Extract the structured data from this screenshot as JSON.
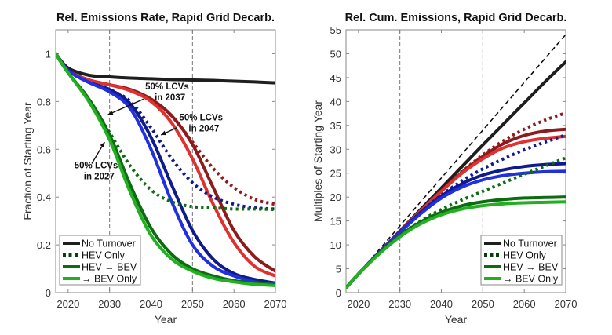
{
  "colors": {
    "black": "#1e1e1e",
    "maroon": "#8c1c1c",
    "red": "#e03030",
    "navy": "#0f1a8c",
    "blue": "#2030e0",
    "darkgreen": "#0d6b10",
    "green": "#22b022",
    "annotation_green_dotted": "#0b3d10"
  },
  "chart_data": [
    {
      "type": "line",
      "title": "Rel. Emissions Rate, Rapid Grid Decarb.",
      "xlabel": "Year",
      "ylabel": "Fraction of Starting Year",
      "xlim": [
        2017,
        2070
      ],
      "ylim": [
        0,
        1.1
      ],
      "xticks": [
        2020,
        2030,
        2040,
        2050,
        2060,
        2070
      ],
      "yticks": [
        0,
        0.2,
        0.4,
        0.6,
        0.8,
        1
      ],
      "ytick_labels": [
        "0",
        "0.2",
        "0.4",
        "0.6",
        "0.8",
        "1"
      ],
      "vlines": [
        2030,
        2050
      ],
      "grid": false,
      "legend_position": "bottom-left",
      "x": [
        2017,
        2020,
        2025,
        2030,
        2035,
        2040,
        2045,
        2050,
        2055,
        2060,
        2065,
        2070
      ],
      "series": [
        {
          "name": "No Turnover",
          "color": "black",
          "style": "solid",
          "values": [
            1.0,
            0.94,
            0.91,
            0.903,
            0.898,
            0.895,
            0.892,
            0.89,
            0.888,
            0.885,
            0.882,
            0.878
          ]
        },
        {
          "name": "HEV Only (2047)",
          "color": "maroon",
          "style": "dotted",
          "values": [
            1.0,
            0.93,
            0.89,
            0.87,
            0.85,
            0.81,
            0.74,
            0.63,
            0.52,
            0.44,
            0.39,
            0.37
          ]
        },
        {
          "name": "HEV → BEV (2047)",
          "color": "maroon",
          "style": "solid",
          "values": [
            1.0,
            0.93,
            0.89,
            0.87,
            0.85,
            0.81,
            0.74,
            0.62,
            0.44,
            0.26,
            0.15,
            0.09
          ]
        },
        {
          "name": "→ BEV Only (2047)",
          "color": "red",
          "style": "solid",
          "values": [
            1.0,
            0.93,
            0.89,
            0.87,
            0.845,
            0.8,
            0.71,
            0.56,
            0.37,
            0.21,
            0.11,
            0.07
          ]
        },
        {
          "name": "HEV Only (2037)",
          "color": "navy",
          "style": "dotted",
          "values": [
            1.0,
            0.93,
            0.88,
            0.85,
            0.8,
            0.69,
            0.56,
            0.46,
            0.4,
            0.37,
            0.355,
            0.35
          ]
        },
        {
          "name": "HEV → BEV (2037)",
          "color": "navy",
          "style": "solid",
          "values": [
            1.0,
            0.93,
            0.88,
            0.85,
            0.79,
            0.65,
            0.45,
            0.26,
            0.14,
            0.08,
            0.055,
            0.04
          ]
        },
        {
          "name": "→ BEV Only (2037)",
          "color": "blue",
          "style": "solid",
          "values": [
            1.0,
            0.93,
            0.88,
            0.84,
            0.77,
            0.6,
            0.38,
            0.2,
            0.11,
            0.07,
            0.045,
            0.035
          ]
        },
        {
          "name": "HEV Only (2027)",
          "color": "darkgreen",
          "style": "dotted",
          "values": [
            1.0,
            0.92,
            0.81,
            0.67,
            0.53,
            0.43,
            0.38,
            0.36,
            0.355,
            0.35,
            0.35,
            0.348
          ]
        },
        {
          "name": "HEV → BEV (2027)",
          "color": "darkgreen",
          "style": "solid",
          "values": [
            1.0,
            0.92,
            0.81,
            0.66,
            0.45,
            0.27,
            0.16,
            0.1,
            0.07,
            0.05,
            0.04,
            0.033
          ]
        },
        {
          "name": "→ BEV Only (2027)",
          "color": "green",
          "style": "solid",
          "values": [
            1.0,
            0.92,
            0.8,
            0.64,
            0.42,
            0.24,
            0.14,
            0.09,
            0.06,
            0.045,
            0.035,
            0.03
          ]
        }
      ],
      "annotations": [
        {
          "lines": [
            "50% LCVs",
            "in 2037"
          ],
          "text_at": [
            2038.6,
            0.85
          ],
          "arrow_from": [
            2038.2,
            0.81
          ],
          "arrow_to": [
            2029.6,
            0.745
          ]
        },
        {
          "lines": [
            "50% LCVs",
            "in 2047"
          ],
          "text_at": [
            2046.8,
            0.72
          ],
          "arrow_from": [
            2046.2,
            0.69
          ],
          "arrow_to": [
            2042.4,
            0.66
          ]
        },
        {
          "lines": [
            "50% LCVs",
            "in 2027"
          ],
          "text_at": [
            2021.5,
            0.52
          ],
          "arrow_from": [
            2025.7,
            0.54
          ],
          "arrow_to": [
            2028.8,
            0.63
          ]
        }
      ],
      "legend": [
        {
          "label": "No Turnover",
          "color": "black",
          "style": "solid"
        },
        {
          "label": "HEV Only",
          "color": "annotation_green_dotted",
          "style": "dotted"
        },
        {
          "label": "HEV →  BEV",
          "color": "darkgreen",
          "style": "solid"
        },
        {
          "label": "→ BEV Only",
          "color": "green",
          "style": "solid"
        }
      ]
    },
    {
      "type": "line",
      "title": "Rel. Cum. Emissions, Rapid Grid Decarb.",
      "xlabel": "Year",
      "ylabel": "Multiples of Starting Year",
      "xlim": [
        2017,
        2070
      ],
      "ylim": [
        0,
        55
      ],
      "xticks": [
        2020,
        2030,
        2040,
        2050,
        2060,
        2070
      ],
      "yticks": [
        0,
        5,
        10,
        15,
        20,
        25,
        30,
        35,
        40,
        45,
        50,
        55
      ],
      "ytick_labels": [
        "0",
        "5",
        "10",
        "15",
        "20",
        "25",
        "30",
        "35",
        "40",
        "45",
        "50",
        "55"
      ],
      "vlines": [
        2030,
        2050
      ],
      "grid": false,
      "legend_position": "bottom-right",
      "x": [
        2017,
        2020,
        2025,
        2030,
        2035,
        2040,
        2045,
        2050,
        2055,
        2060,
        2065,
        2070
      ],
      "series": [
        {
          "name": "Reference (constant rate)",
          "color": "black",
          "style": "dashed",
          "values": [
            1,
            4,
            9,
            14,
            19,
            24,
            29,
            34,
            39,
            44,
            49,
            54
          ]
        },
        {
          "name": "No Turnover",
          "color": "black",
          "style": "solid",
          "values": [
            1,
            3.9,
            8.4,
            12.9,
            17.4,
            21.9,
            26.4,
            30.9,
            35.3,
            39.7,
            44.1,
            48.3
          ]
        },
        {
          "name": "HEV Only (2047)",
          "color": "maroon",
          "style": "dotted",
          "values": [
            1,
            3.9,
            8.4,
            12.8,
            17.1,
            21.3,
            25.3,
            28.8,
            31.8,
            34.2,
            36.1,
            37.6
          ]
        },
        {
          "name": "HEV → BEV (2047)",
          "color": "maroon",
          "style": "solid",
          "values": [
            1,
            3.9,
            8.4,
            12.8,
            17.1,
            21.3,
            25.2,
            28.5,
            31.2,
            32.9,
            33.8,
            34.2
          ]
        },
        {
          "name": "→ BEV Only (2047)",
          "color": "red",
          "style": "solid",
          "values": [
            1,
            3.9,
            8.4,
            12.8,
            17.1,
            21.2,
            25.0,
            28.0,
            30.3,
            31.6,
            32.3,
            32.7
          ]
        },
        {
          "name": "HEV Only (2037)",
          "color": "navy",
          "style": "dotted",
          "values": [
            1,
            3.9,
            8.4,
            12.7,
            16.8,
            20.4,
            23.4,
            25.9,
            28.0,
            29.9,
            31.5,
            33.0
          ]
        },
        {
          "name": "HEV → BEV (2037)",
          "color": "navy",
          "style": "solid",
          "values": [
            1,
            3.9,
            8.4,
            12.7,
            16.7,
            20.2,
            22.8,
            24.6,
            25.7,
            26.4,
            26.8,
            27.0
          ]
        },
        {
          "name": "→ BEV Only (2037)",
          "color": "blue",
          "style": "solid",
          "values": [
            1,
            3.9,
            8.4,
            12.6,
            16.5,
            19.8,
            22.1,
            23.6,
            24.5,
            25.0,
            25.3,
            25.4
          ]
        },
        {
          "name": "HEV Only (2027)",
          "color": "darkgreen",
          "style": "dotted",
          "values": [
            1,
            3.9,
            8.2,
            12.0,
            15.0,
            17.4,
            19.4,
            21.2,
            23.0,
            24.8,
            26.5,
            28.2
          ]
        },
        {
          "name": "HEV → BEV (2027)",
          "color": "darkgreen",
          "style": "solid",
          "values": [
            1,
            3.9,
            8.2,
            11.9,
            14.8,
            16.8,
            18.2,
            19.0,
            19.5,
            19.8,
            19.9,
            20.0
          ]
        },
        {
          "name": "→ BEV Only (2027)",
          "color": "green",
          "style": "solid",
          "values": [
            1,
            3.9,
            8.1,
            11.7,
            14.4,
            16.3,
            17.5,
            18.2,
            18.6,
            18.8,
            18.9,
            19.0
          ]
        }
      ],
      "legend": [
        {
          "label": "No Turnover",
          "color": "black",
          "style": "solid"
        },
        {
          "label": "HEV Only",
          "color": "annotation_green_dotted",
          "style": "dotted"
        },
        {
          "label": "HEV →  BEV",
          "color": "darkgreen",
          "style": "solid"
        },
        {
          "label": "→ BEV Only",
          "color": "green",
          "style": "solid"
        }
      ]
    }
  ]
}
